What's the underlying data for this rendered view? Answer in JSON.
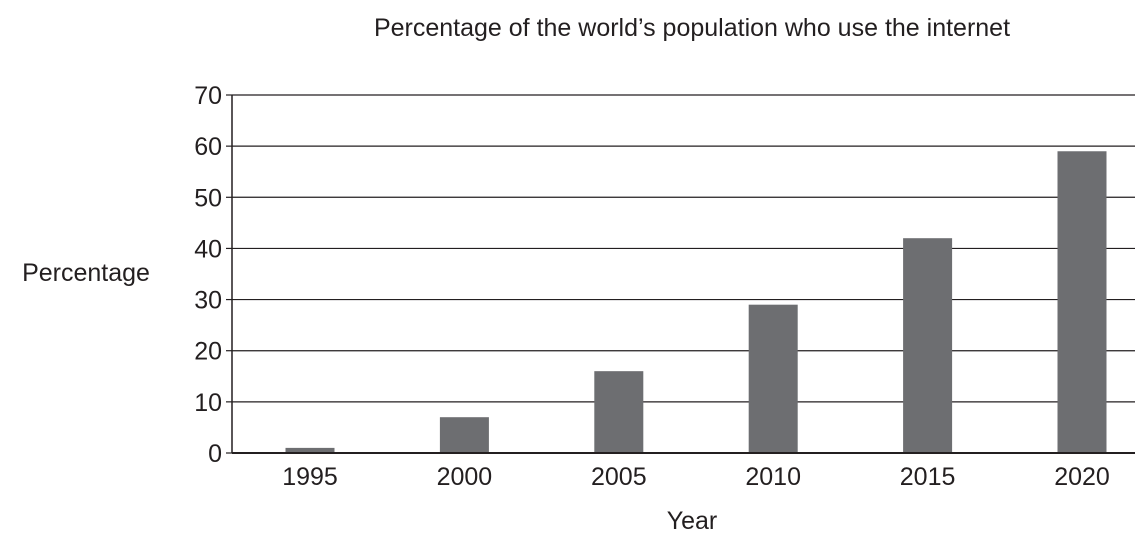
{
  "chart_data": {
    "type": "bar",
    "title": "Percentage of the world’s population who use the internet",
    "xlabel": "Year",
    "ylabel": "Percentage",
    "categories": [
      "1995",
      "2000",
      "2005",
      "2010",
      "2015",
      "2020"
    ],
    "values": [
      1,
      7,
      16,
      29,
      42,
      59
    ],
    "ylim": [
      0,
      70
    ],
    "yticks": [
      0,
      10,
      20,
      30,
      40,
      50,
      60,
      70
    ],
    "grid": true,
    "legend": "none",
    "colors": {
      "bar": "#6d6e71",
      "text": "#231f20",
      "grid": "#231f20"
    }
  }
}
